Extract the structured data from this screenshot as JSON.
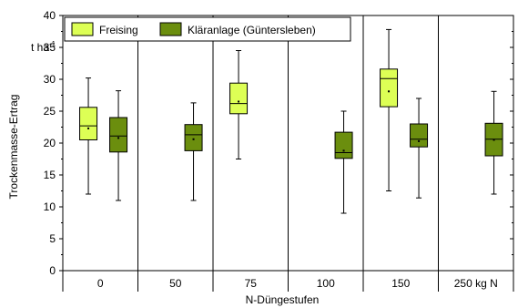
{
  "chart_data": {
    "type": "box",
    "xlabel": "N-Düngestufen",
    "ylabel": "Trockenmasse-Ertrag",
    "unit": "t ha",
    "unit_superscript": "-1",
    "ylim": [
      0,
      40
    ],
    "yticks": [
      0,
      5,
      10,
      15,
      20,
      25,
      30,
      35,
      40
    ],
    "groups": [
      "0",
      "50",
      "75",
      "100",
      "150",
      "250 kg N"
    ],
    "legend_position": "top",
    "series": [
      {
        "name": "Freising",
        "color": "#ddff55",
        "boxes": [
          {
            "group": "0",
            "min": 12.0,
            "q1": 20.5,
            "median": 22.7,
            "mean": 22.3,
            "q3": 25.6,
            "max": 30.2
          },
          {
            "group": "75",
            "min": 17.5,
            "q1": 24.6,
            "median": 26.2,
            "mean": 26.5,
            "q3": 29.4,
            "max": 34.5
          },
          {
            "group": "150",
            "min": 12.5,
            "q1": 25.7,
            "median": 30.1,
            "mean": 28.1,
            "q3": 31.6,
            "max": 37.8
          }
        ]
      },
      {
        "name": "Kläranlage (Güntersleben)",
        "color": "#6b8e0e",
        "boxes": [
          {
            "group": "0",
            "min": 11.0,
            "q1": 18.6,
            "median": 21.1,
            "mean": 20.8,
            "q3": 24.0,
            "max": 28.2
          },
          {
            "group": "50",
            "min": 11.0,
            "q1": 18.8,
            "median": 21.3,
            "mean": 20.6,
            "q3": 22.9,
            "max": 26.3
          },
          {
            "group": "100",
            "min": 9.0,
            "q1": 17.6,
            "median": 18.5,
            "mean": 18.8,
            "q3": 21.7,
            "max": 25.0
          },
          {
            "group": "150",
            "min": 11.4,
            "q1": 19.4,
            "median": 20.6,
            "mean": 20.3,
            "q3": 23.0,
            "max": 27.0
          },
          {
            "group": "250 kg N",
            "min": 12.0,
            "q1": 18.0,
            "median": 20.6,
            "mean": 20.5,
            "q3": 23.1,
            "max": 28.1
          }
        ]
      }
    ]
  }
}
